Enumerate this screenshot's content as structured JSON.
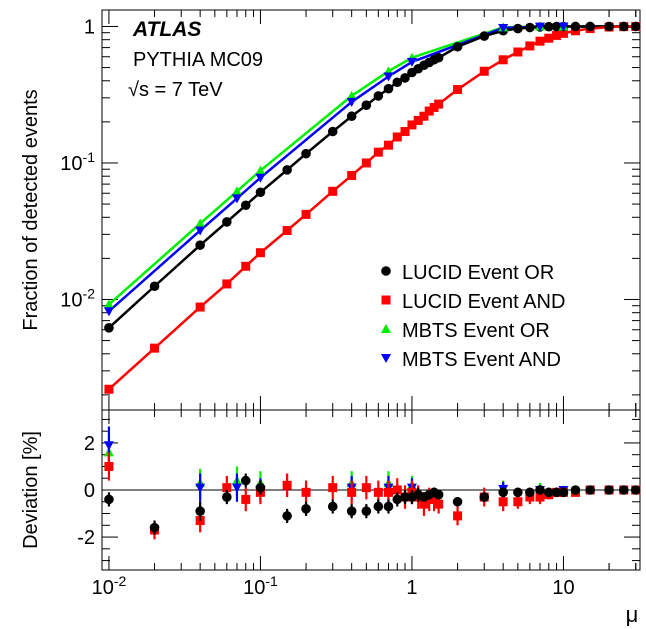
{
  "chart_data": [
    {
      "type": "scatter",
      "panel": "top",
      "title": "",
      "xlabel": "",
      "ylabel": "Fraction of detected events",
      "xscale": "log",
      "yscale": "log",
      "xlim": [
        0.009,
        32
      ],
      "ylim": [
        0.00155,
        1.32
      ],
      "annotations": [
        "ATLAS",
        "PYTHIA MC09",
        "√s = 7 TeV"
      ],
      "legend_position": "right-center",
      "y_tick_labels": [
        "10^-2",
        "10^-1",
        "1"
      ],
      "series": [
        {
          "name": "LUCID Event OR",
          "marker": "circle",
          "color": "#000000",
          "x": [
            0.01,
            0.02,
            0.04,
            0.06,
            0.08,
            0.1,
            0.15,
            0.2,
            0.3,
            0.4,
            0.5,
            0.6,
            0.7,
            0.8,
            0.9,
            1.0,
            1.1,
            1.2,
            1.3,
            1.4,
            1.5,
            2,
            3,
            4,
            5,
            6,
            7,
            8,
            9,
            10,
            12,
            15,
            20,
            25,
            30
          ],
          "y": [
            0.0062,
            0.0125,
            0.025,
            0.037,
            0.049,
            0.061,
            0.089,
            0.117,
            0.17,
            0.22,
            0.265,
            0.31,
            0.35,
            0.39,
            0.42,
            0.46,
            0.49,
            0.52,
            0.545,
            0.57,
            0.59,
            0.71,
            0.85,
            0.93,
            0.965,
            0.982,
            0.991,
            0.996,
            0.998,
            0.999,
            1,
            1,
            1,
            1,
            1
          ]
        },
        {
          "name": "LUCID Event AND",
          "marker": "square",
          "color": "#ff0000",
          "x": [
            0.01,
            0.02,
            0.04,
            0.06,
            0.08,
            0.1,
            0.15,
            0.2,
            0.3,
            0.4,
            0.5,
            0.6,
            0.7,
            0.8,
            0.9,
            1.0,
            1.1,
            1.2,
            1.3,
            1.4,
            1.5,
            2,
            3,
            4,
            5,
            6,
            7,
            8,
            9,
            10,
            12,
            15,
            20,
            25,
            30
          ],
          "y": [
            0.0022,
            0.0044,
            0.0088,
            0.013,
            0.0175,
            0.022,
            0.032,
            0.042,
            0.062,
            0.081,
            0.1,
            0.12,
            0.135,
            0.155,
            0.17,
            0.19,
            0.205,
            0.22,
            0.24,
            0.255,
            0.27,
            0.345,
            0.47,
            0.57,
            0.65,
            0.72,
            0.78,
            0.82,
            0.86,
            0.89,
            0.93,
            0.965,
            0.99,
            0.997,
            1
          ]
        },
        {
          "name": "MBTS Event OR",
          "marker": "triangle-up",
          "color": "#00ee00",
          "x": [
            0.01,
            0.04,
            0.07,
            0.1,
            0.4,
            0.7,
            1.0,
            4,
            7,
            10
          ],
          "y": [
            0.0092,
            0.036,
            0.062,
            0.088,
            0.31,
            0.47,
            0.59,
            0.985,
            0.999,
            1
          ]
        },
        {
          "name": "MBTS Event AND",
          "marker": "triangle-down",
          "color": "#0000ff",
          "x": [
            0.01,
            0.04,
            0.07,
            0.1,
            0.4,
            0.7,
            1.0,
            4,
            7,
            10
          ],
          "y": [
            0.0082,
            0.032,
            0.055,
            0.078,
            0.28,
            0.43,
            0.55,
            0.975,
            0.998,
            1
          ]
        }
      ]
    },
    {
      "type": "scatter",
      "panel": "bottom",
      "title": "",
      "xlabel": "μ",
      "ylabel": "Deviation [%]",
      "xscale": "log",
      "xlim": [
        0.009,
        32
      ],
      "ylim": [
        -3.4,
        3.4
      ],
      "x_tick_labels": [
        "10^-2",
        "10^-1",
        "1",
        "10"
      ],
      "y_tick_labels": [
        "-2",
        "0",
        "2"
      ],
      "reference_line": 0,
      "series": [
        {
          "name": "LUCID Event OR",
          "marker": "circle",
          "color": "#000000",
          "x": [
            0.01,
            0.02,
            0.04,
            0.06,
            0.08,
            0.1,
            0.15,
            0.2,
            0.3,
            0.4,
            0.5,
            0.6,
            0.7,
            0.8,
            0.9,
            1.0,
            1.1,
            1.2,
            1.3,
            1.4,
            1.5,
            2,
            3,
            4,
            5,
            6,
            7,
            8,
            9,
            10,
            12,
            15,
            20,
            25,
            30
          ],
          "y": [
            -0.4,
            -1.6,
            -0.9,
            -0.3,
            0.4,
            0.1,
            -1.1,
            -0.8,
            -0.7,
            -0.9,
            -0.9,
            -0.7,
            -0.7,
            -0.4,
            -0.3,
            -0.3,
            -0.2,
            -0.3,
            -0.2,
            -0.1,
            -0.2,
            -0.5,
            -0.3,
            -0.1,
            -0.1,
            -0.1,
            0,
            -0.1,
            -0.1,
            -0.1,
            0,
            0,
            0,
            0,
            0
          ],
          "err": [
            0.3,
            0.3,
            0.4,
            0.3,
            0.3,
            0.3,
            0.3,
            0.3,
            0.3,
            0.3,
            0.3,
            0.3,
            0.3,
            0.3,
            0.3,
            0.3,
            0.3,
            0.2,
            0.2,
            0.2,
            0.2,
            0.2,
            0.2,
            0.15,
            0.1,
            0.1,
            0.1,
            0.1,
            0.1,
            0.1,
            0.05,
            0.05,
            0.05,
            0.05,
            0.05
          ]
        },
        {
          "name": "LUCID Event AND",
          "marker": "square",
          "color": "#ff0000",
          "x": [
            0.01,
            0.02,
            0.04,
            0.06,
            0.08,
            0.1,
            0.15,
            0.2,
            0.3,
            0.4,
            0.5,
            0.6,
            0.7,
            0.8,
            0.9,
            1.0,
            1.1,
            1.2,
            1.3,
            1.4,
            1.5,
            2,
            3,
            4,
            5,
            6,
            7,
            8,
            9,
            10,
            12,
            15,
            20,
            25,
            30
          ],
          "y": [
            1.0,
            -1.7,
            -1.3,
            0.1,
            -0.4,
            -0.1,
            0.2,
            -0.1,
            0.1,
            -0.1,
            0.1,
            -0.1,
            -0.1,
            0,
            -0.3,
            -0.1,
            -0.3,
            -0.6,
            -0.4,
            -0.4,
            -0.6,
            -1.1,
            -0.3,
            -0.5,
            -0.5,
            -0.3,
            -0.3,
            -0.2,
            -0.1,
            -0.1,
            -0.1,
            0,
            0,
            0,
            0
          ],
          "err": [
            0.6,
            0.4,
            0.5,
            0.5,
            0.5,
            0.5,
            0.5,
            0.5,
            0.5,
            0.5,
            0.5,
            0.5,
            0.5,
            0.5,
            0.5,
            0.5,
            0.5,
            0.5,
            0.5,
            0.5,
            0.4,
            0.4,
            0.4,
            0.4,
            0.3,
            0.3,
            0.3,
            0.2,
            0.2,
            0.2,
            0.1,
            0.1,
            0.1,
            0.05,
            0.05
          ]
        },
        {
          "name": "MBTS Event OR",
          "marker": "triangle-up",
          "color": "#00ee00",
          "x": [
            0.01,
            0.04,
            0.07,
            0.1,
            0.4,
            0.7,
            1.0,
            4,
            7,
            10
          ],
          "y": [
            1.6,
            0.3,
            0.4,
            0.3,
            0.3,
            0.3,
            0.2,
            0.1,
            0.1,
            0
          ],
          "err": [
            0.8,
            0.6,
            0.6,
            0.5,
            0.5,
            0.5,
            0.4,
            0.3,
            0.2,
            0.1
          ]
        },
        {
          "name": "MBTS Event AND",
          "marker": "triangle-down",
          "color": "#0000ff",
          "x": [
            0.01,
            0.04,
            0.07,
            0.1,
            0.4,
            0.7,
            1.0,
            4,
            7,
            10
          ],
          "y": [
            1.9,
            0.1,
            0.1,
            0.0,
            0.1,
            0.1,
            0.1,
            0.05,
            0,
            0
          ],
          "err": [
            0.8,
            0.6,
            0.6,
            0.5,
            0.5,
            0.5,
            0.4,
            0.3,
            0.2,
            0.1
          ]
        }
      ]
    }
  ]
}
